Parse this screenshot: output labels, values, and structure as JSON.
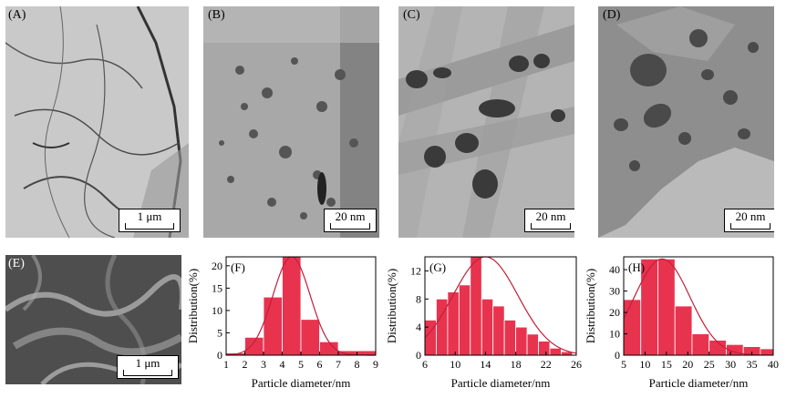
{
  "panels": {
    "A": {
      "label": "(A)",
      "scale": "1 μm"
    },
    "B": {
      "label": "(B)",
      "scale": "20 nm"
    },
    "C": {
      "label": "(C)",
      "scale": "20 nm"
    },
    "D": {
      "label": "(D)",
      "scale": "20 nm"
    },
    "E": {
      "label": "(E)",
      "scale": "1 μm"
    }
  },
  "colors": {
    "bar": "#e8334f",
    "curve": "#c0203a",
    "tem_bg": "#b8b8b8",
    "sem_bg": "#5a5a5a"
  },
  "chart_data": [
    {
      "type": "bar",
      "label": "(F)",
      "xlabel": "Particle diameter/nm",
      "ylabel": "Distribution(%)",
      "xlim": [
        1,
        9
      ],
      "ylim": [
        0,
        22
      ],
      "xticks": [
        1,
        2,
        3,
        4,
        5,
        6,
        7,
        8,
        9
      ],
      "yticks": [
        0,
        5,
        10,
        15,
        20
      ],
      "bin_width": 1,
      "bins": [
        1,
        2,
        3,
        4,
        5,
        6,
        7,
        8
      ],
      "values": [
        0.5,
        4,
        13,
        22,
        8,
        3,
        1,
        1
      ],
      "fit": {
        "mean": 4.5,
        "sigma": 1.0,
        "peak": 22
      }
    },
    {
      "type": "bar",
      "label": "(G)",
      "xlabel": "Particle diameter/nm",
      "ylabel": "Distribution(%)",
      "xlim": [
        6,
        26
      ],
      "ylim": [
        0,
        14
      ],
      "xticks": [
        6,
        10,
        14,
        18,
        22,
        26
      ],
      "yticks": [
        0,
        4,
        8,
        12
      ],
      "bin_width": 1.5,
      "bins": [
        6,
        7.5,
        9,
        10.5,
        12,
        13.5,
        15,
        16.5,
        18,
        19.5,
        21,
        22.5,
        24
      ],
      "values": [
        5,
        8,
        9,
        10,
        14,
        8,
        7,
        5,
        4,
        3,
        2,
        1,
        0.5
      ],
      "fit": {
        "mean": 14,
        "sigma": 4.3,
        "peak": 14
      }
    },
    {
      "type": "bar",
      "label": "(H)",
      "xlabel": "Particle diameter/nm",
      "ylabel": "Distribution(%)",
      "xlim": [
        5,
        40
      ],
      "ylim": [
        0,
        46
      ],
      "xticks": [
        5,
        10,
        15,
        20,
        25,
        30,
        35,
        40
      ],
      "yticks": [
        0,
        10,
        20,
        30,
        40
      ],
      "bin_width": 4,
      "bins": [
        5,
        9,
        13,
        17,
        21,
        25,
        29,
        33,
        37
      ],
      "values": [
        26,
        45,
        45,
        23,
        10,
        7,
        5,
        4,
        3
      ],
      "fit": {
        "mean": 14,
        "sigma": 6.5,
        "peak": 45
      }
    }
  ]
}
